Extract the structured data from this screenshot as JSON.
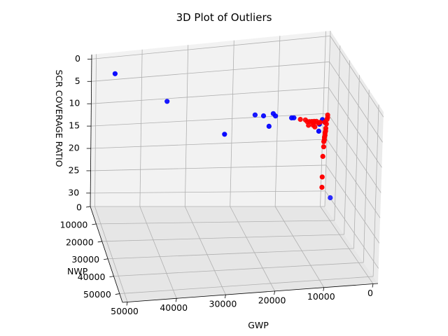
{
  "chart_data": {
    "type": "scatter",
    "projection": "3d",
    "title": "3D Plot of Outliers",
    "xlabel": "GWP",
    "ylabel": "NWP",
    "zlabel": "SCR COVERAGE RATIO",
    "x_ticks": [
      "0",
      "10000",
      "20000",
      "30000",
      "40000",
      "50000"
    ],
    "y_ticks": [
      "0",
      "10000",
      "20000",
      "30000",
      "40000",
      "50000"
    ],
    "z_ticks": [
      "0",
      "5",
      "10",
      "15",
      "20",
      "25",
      "30"
    ],
    "xlim": [
      -1000,
      51000
    ],
    "ylim": [
      0,
      55000
    ],
    "zlim": [
      -1,
      33
    ],
    "z_inverted": true,
    "grid": true,
    "colors": {
      "blue": "#0000ff",
      "red": "#ff0000"
    },
    "series": [
      {
        "color": "#0000ff",
        "points": [
          {
            "x": 46000,
            "y": 3000,
            "z": 3.5
          },
          {
            "x": 35000,
            "y": 6000,
            "z": 9.5
          },
          {
            "x": 22000,
            "y": 2500,
            "z": 17.5
          },
          {
            "x": 16000,
            "y": 6000,
            "z": 13
          },
          {
            "x": 14000,
            "y": 5000,
            "z": 13.5
          },
          {
            "x": 12000,
            "y": 5500,
            "z": 13
          },
          {
            "x": 11500,
            "y": 5500,
            "z": 13.5
          },
          {
            "x": 12500,
            "y": 3500,
            "z": 16
          },
          {
            "x": 8000,
            "y": 5500,
            "z": 14
          },
          {
            "x": 7500,
            "y": 5500,
            "z": 14
          },
          {
            "x": 1500,
            "y": 3500,
            "z": 16
          },
          {
            "x": 1000,
            "y": 4000,
            "z": 15
          },
          {
            "x": 500,
            "y": 4000,
            "z": 15.5
          },
          {
            "x": 1500,
            "y": 3000,
            "z": 17.5
          },
          {
            "x": 500,
            "y": 12000,
            "z": 28
          }
        ]
      },
      {
        "color": "#ff0000",
        "points": [
          {
            "x": 6000,
            "y": 5000,
            "z": 14.5
          },
          {
            "x": 5000,
            "y": 5500,
            "z": 14.5
          },
          {
            "x": 4500,
            "y": 5000,
            "z": 15
          },
          {
            "x": 4000,
            "y": 5000,
            "z": 15
          },
          {
            "x": 3500,
            "y": 5000,
            "z": 15
          },
          {
            "x": 3000,
            "y": 5000,
            "z": 15
          },
          {
            "x": 2500,
            "y": 5000,
            "z": 15
          },
          {
            "x": 3000,
            "y": 4500,
            "z": 15.5
          },
          {
            "x": 2000,
            "y": 4500,
            "z": 15.5
          },
          {
            "x": 4000,
            "y": 4000,
            "z": 16
          },
          {
            "x": 3000,
            "y": 4000,
            "z": 16
          },
          {
            "x": 2500,
            "y": 3500,
            "z": 16.5
          },
          {
            "x": 1500,
            "y": 4000,
            "z": 15.5
          },
          {
            "x": 500,
            "y": 4000,
            "z": 15.5
          },
          {
            "x": 0,
            "y": 4000,
            "z": 15
          },
          {
            "x": 0,
            "y": 4500,
            "z": 14.5
          },
          {
            "x": 0,
            "y": 4500,
            "z": 14
          },
          {
            "x": 0,
            "y": 3500,
            "z": 16
          },
          {
            "x": 0,
            "y": 3000,
            "z": 17
          },
          {
            "x": 0,
            "y": 3000,
            "z": 17.5
          },
          {
            "x": 0,
            "y": 2500,
            "z": 18
          },
          {
            "x": 0,
            "y": 2500,
            "z": 18.5
          },
          {
            "x": 0,
            "y": 2000,
            "z": 19
          },
          {
            "x": 0,
            "y": 2000,
            "z": 19.5
          },
          {
            "x": 0,
            "y": 1500,
            "z": 20
          },
          {
            "x": 0,
            "y": 1500,
            "z": 21
          },
          {
            "x": 0,
            "y": 1000,
            "z": 23
          },
          {
            "x": 0,
            "y": 1000,
            "z": 27
          },
          {
            "x": 0,
            "y": 1000,
            "z": 29
          }
        ]
      }
    ]
  }
}
